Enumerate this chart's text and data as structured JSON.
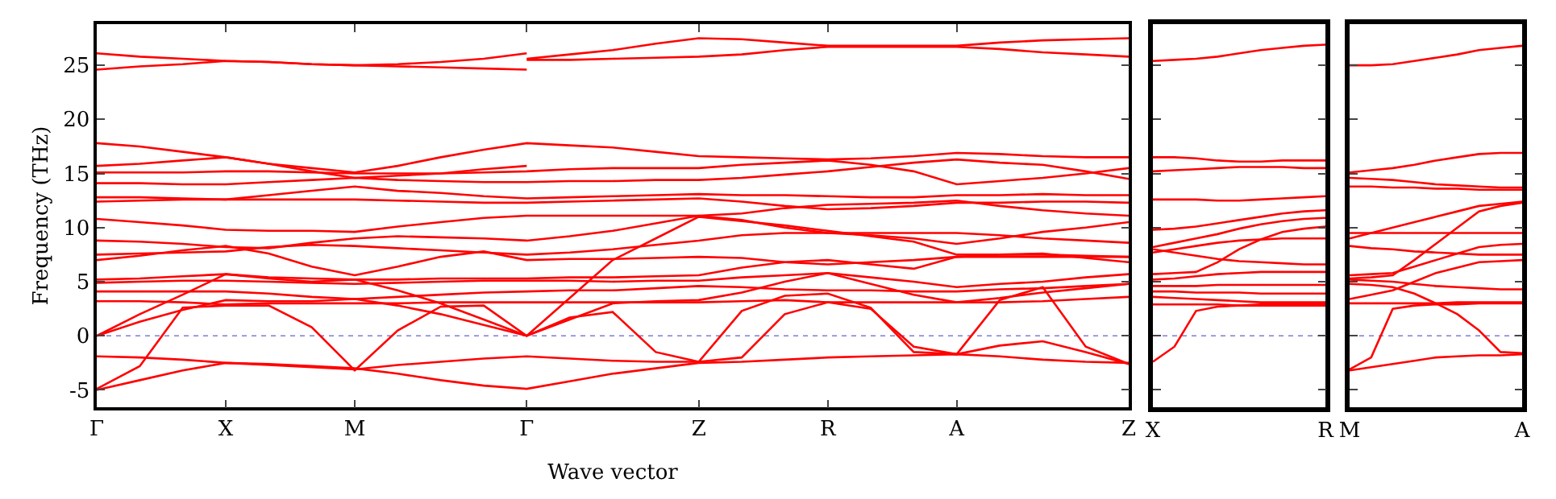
{
  "chart_data": [
    {
      "type": "line",
      "xlabel": "Wave vector",
      "ylabel": "Frequency (THz)",
      "ylim": [
        -6.6,
        28.8
      ],
      "yticks": [
        -5,
        0,
        5,
        10,
        15,
        20,
        25
      ],
      "categories": [
        "Γ",
        null,
        null,
        "X",
        null,
        null,
        "M",
        null,
        null,
        null,
        "Γ",
        null,
        null,
        null,
        "Z",
        null,
        null,
        "R",
        null,
        null,
        "A",
        null,
        null,
        null,
        "Z"
      ],
      "ref_lines": [
        {
          "axis": "y",
          "value": 0,
          "color": "#7b7bd6",
          "line_style": "dotted"
        }
      ],
      "series": [
        {
          "color": "#ff0000",
          "values": [
            26.1,
            25.8,
            25.6,
            25.4,
            25.3,
            25.1,
            25.0,
            25.1,
            25.3,
            25.6,
            26.1,
            null,
            null,
            null,
            null,
            null,
            null,
            null,
            null,
            null,
            null,
            null,
            null,
            null,
            null
          ]
        },
        {
          "color": "#ff0000",
          "values": [
            24.6,
            24.9,
            25.1,
            25.4,
            25.3,
            25.1,
            25.0,
            24.9,
            24.8,
            24.7,
            24.6,
            null,
            null,
            null,
            null,
            null,
            null,
            null,
            null,
            null,
            null,
            null,
            null,
            null,
            null
          ]
        },
        {
          "color": "#ff0000",
          "values": [
            null,
            null,
            null,
            null,
            null,
            null,
            null,
            null,
            null,
            null,
            25.6,
            26.0,
            26.4,
            27.0,
            27.5,
            27.4,
            27.1,
            26.8,
            26.8,
            26.8,
            26.8,
            27.1,
            27.3,
            27.4,
            27.5
          ]
        },
        {
          "color": "#ff0000",
          "values": [
            null,
            null,
            null,
            null,
            null,
            null,
            null,
            null,
            null,
            null,
            25.5,
            25.5,
            25.6,
            25.7,
            25.8,
            26.0,
            26.4,
            26.7,
            26.7,
            26.7,
            26.7,
            26.5,
            26.2,
            26.0,
            25.8
          ]
        },
        {
          "color": "#ff0000",
          "values": [
            17.8,
            17.5,
            17.0,
            16.5,
            15.9,
            15.5,
            15.1,
            15.7,
            16.5,
            17.2,
            17.8,
            17.6,
            17.4,
            17.0,
            16.6,
            16.5,
            16.4,
            16.3,
            16.4,
            16.6,
            16.9,
            16.8,
            16.6,
            16.5,
            16.5
          ]
        },
        {
          "color": "#ff0000",
          "values": [
            15.7,
            15.9,
            16.2,
            16.5,
            15.9,
            15.2,
            14.6,
            14.8,
            15.0,
            15.4,
            15.7,
            null,
            null,
            null,
            null,
            null,
            null,
            null,
            null,
            null,
            null,
            null,
            null,
            null,
            null
          ]
        },
        {
          "color": "#ff0000",
          "values": [
            15.1,
            15.1,
            15.1,
            15.2,
            15.2,
            15.1,
            15.0,
            15.0,
            15.0,
            15.1,
            15.2,
            15.4,
            15.5,
            15.5,
            15.5,
            15.8,
            16.0,
            16.2,
            15.8,
            15.2,
            14.0,
            14.3,
            14.6,
            15.0,
            15.5
          ]
        },
        {
          "color": "#ff0000",
          "values": [
            14.1,
            14.1,
            14.0,
            14.0,
            14.2,
            14.4,
            14.6,
            14.4,
            14.3,
            14.2,
            14.2,
            14.3,
            14.3,
            14.4,
            14.4,
            14.6,
            14.9,
            15.2,
            15.6,
            16.0,
            16.3,
            16.0,
            15.8,
            15.2,
            14.5
          ]
        },
        {
          "color": "#ff0000",
          "values": [
            12.8,
            12.8,
            12.7,
            12.6,
            13.0,
            13.4,
            13.8,
            13.4,
            13.2,
            12.9,
            12.7,
            12.8,
            12.9,
            13.0,
            13.1,
            13.0,
            13.0,
            12.9,
            12.8,
            12.8,
            13.0,
            13.0,
            13.1,
            13.0,
            13.0
          ]
        },
        {
          "color": "#ff0000",
          "values": [
            12.4,
            12.5,
            12.6,
            12.6,
            12.6,
            12.6,
            12.6,
            12.5,
            12.4,
            12.3,
            12.3,
            12.4,
            12.5,
            12.6,
            12.7,
            12.4,
            12.0,
            11.7,
            11.8,
            12.0,
            12.3,
            12.3,
            12.4,
            12.4,
            12.3
          ]
        },
        {
          "color": "#ff0000",
          "values": [
            10.8,
            10.5,
            10.2,
            9.8,
            9.7,
            9.7,
            9.6,
            10.1,
            10.5,
            10.9,
            11.1,
            11.1,
            11.1,
            11.1,
            11.1,
            11.3,
            11.8,
            12.1,
            12.2,
            12.3,
            12.5,
            12.0,
            11.6,
            11.3,
            11.1
          ]
        },
        {
          "color": "#ff0000",
          "values": [
            8.8,
            8.7,
            8.5,
            8.2,
            8.1,
            8.6,
            9.0,
            9.2,
            9.1,
            9.0,
            8.8,
            9.2,
            9.7,
            10.4,
            11.1,
            10.7,
            10.0,
            9.5,
            9.3,
            9.0,
            8.5,
            9.0,
            9.6,
            10.0,
            10.5
          ]
        },
        {
          "color": "#ff0000",
          "values": [
            7.5,
            7.6,
            7.7,
            7.8,
            8.2,
            8.4,
            8.3,
            8.1,
            7.9,
            7.7,
            7.5,
            7.7,
            8.0,
            8.4,
            8.8,
            9.3,
            9.5,
            9.5,
            9.5,
            9.5,
            9.5,
            9.3,
            9.0,
            8.8,
            8.6
          ]
        },
        {
          "color": "#ff0000",
          "values": [
            7.0,
            7.4,
            7.9,
            8.3,
            7.6,
            6.4,
            5.6,
            6.4,
            7.3,
            7.8,
            7.0,
            7.1,
            7.1,
            7.2,
            7.3,
            7.2,
            6.8,
            6.6,
            6.8,
            7.0,
            7.3,
            7.3,
            7.3,
            7.3,
            7.3
          ]
        },
        {
          "color": "#ff0000",
          "values": [
            5.2,
            5.3,
            5.5,
            5.7,
            5.4,
            5.3,
            5.2,
            5.2,
            5.3,
            5.3,
            5.3,
            5.4,
            5.4,
            5.5,
            5.6,
            6.3,
            6.8,
            7.0,
            6.6,
            6.2,
            7.3,
            7.5,
            7.6,
            7.2,
            6.8
          ]
        },
        {
          "color": "#ff0000",
          "values": [
            4.9,
            5.0,
            5.1,
            5.1,
            5.0,
            4.9,
            4.8,
            4.9,
            5.0,
            5.1,
            5.1,
            5.1,
            5.0,
            5.1,
            5.1,
            5.4,
            5.6,
            5.8,
            5.4,
            5.0,
            4.5,
            4.8,
            5.0,
            5.4,
            5.7
          ]
        },
        {
          "color": "#ff0000",
          "values": [
            4.1,
            4.1,
            4.1,
            4.1,
            3.9,
            3.6,
            3.4,
            3.6,
            3.8,
            4.0,
            4.1,
            4.2,
            4.2,
            4.4,
            4.6,
            4.5,
            4.3,
            4.2,
            4.2,
            4.1,
            4.1,
            4.3,
            4.4,
            4.6,
            4.8
          ]
        },
        {
          "color": "#ff0000",
          "values": [
            3.2,
            3.2,
            3.1,
            2.9,
            3.0,
            3.0,
            3.0,
            3.0,
            3.1,
            3.1,
            3.1,
            3.1,
            3.1,
            3.1,
            3.1,
            3.2,
            3.3,
            3.1,
            3.1,
            3.1,
            3.1,
            3.1,
            3.2,
            3.4,
            3.6
          ]
        },
        {
          "color": "#ff0000",
          "values": [
            0,
            2.0,
            3.8,
            5.7,
            5.3,
            5.0,
            5.2,
            4.2,
            3.0,
            1.5,
            0,
            3.5,
            7.0,
            9.0,
            11.0,
            10.6,
            10.2,
            9.7,
            9.2,
            8.7,
            7.5,
            7.5,
            7.5,
            7.4,
            7.3
          ]
        },
        {
          "color": "#ff0000",
          "values": [
            0,
            1.3,
            2.4,
            3.3,
            3.2,
            3.2,
            3.4,
            2.8,
            2.0,
            1.0,
            0,
            1.5,
            3.0,
            3.2,
            3.3,
            4.0,
            5.0,
            5.8,
            4.8,
            3.8,
            3.1,
            3.5,
            4.0,
            4.4,
            4.8
          ]
        },
        {
          "color": "#ff0000",
          "values": [
            -4.9,
            -2.8,
            2.6,
            2.8,
            2.8,
            0.8,
            -3.2,
            0.5,
            2.7,
            2.8,
            0,
            1.7,
            2.2,
            -1.5,
            -2.4,
            2.3,
            3.7,
            3.9,
            2.6,
            -1.5,
            -1.7,
            3.3,
            4.5,
            -1.0,
            -2.6
          ]
        },
        {
          "color": "#ff0000",
          "values": [
            -1.9,
            -2.0,
            -2.2,
            -2.5,
            -2.7,
            -2.9,
            -3.1,
            -2.7,
            -2.4,
            -2.1,
            -1.9,
            -2.1,
            -2.3,
            -2.4,
            -2.4,
            -2.0,
            2.0,
            3.1,
            2.5,
            -1.0,
            -1.7,
            -0.9,
            -0.5,
            -1.5,
            -2.6
          ]
        },
        {
          "color": "#ff0000",
          "values": [
            -5.0,
            -4.1,
            -3.2,
            -2.5,
            -2.6,
            -2.8,
            -3.0,
            -3.5,
            -4.1,
            -4.6,
            -4.9,
            -4.2,
            -3.5,
            -3.0,
            -2.5,
            -2.4,
            -2.2,
            -2.0,
            -1.9,
            -1.8,
            -1.7,
            -1.9,
            -2.2,
            -2.4,
            -2.5
          ]
        }
      ]
    },
    {
      "type": "line",
      "tick_labels": "x",
      "ylim": [
        -6.6,
        28.8
      ],
      "yticks": [
        -5,
        0,
        5,
        10,
        15,
        20,
        25
      ],
      "categories": [
        "X",
        null,
        null,
        null,
        null,
        null,
        null,
        null,
        "R"
      ],
      "ref_lines": [
        {
          "axis": "y",
          "value": 0,
          "color": "#7b7bd6",
          "line_style": "dotted"
        }
      ],
      "series": [
        {
          "color": "#ff0000",
          "values": [
            25.4,
            25.5,
            25.6,
            25.8,
            26.1,
            26.4,
            26.6,
            26.8,
            26.9
          ]
        },
        {
          "color": "#ff0000",
          "values": [
            16.5,
            16.5,
            16.4,
            16.2,
            16.1,
            16.1,
            16.2,
            16.2,
            16.2
          ]
        },
        {
          "color": "#ff0000",
          "values": [
            15.2,
            15.3,
            15.4,
            15.5,
            15.6,
            15.6,
            15.6,
            15.5,
            15.5
          ]
        },
        {
          "color": "#ff0000",
          "values": [
            12.6,
            12.6,
            12.6,
            12.5,
            12.5,
            12.6,
            12.7,
            12.8,
            12.9
          ]
        },
        {
          "color": "#ff0000",
          "values": [
            9.8,
            9.9,
            10.1,
            10.4,
            10.7,
            11.0,
            11.3,
            11.5,
            11.6
          ]
        },
        {
          "color": "#ff0000",
          "values": [
            8.2,
            8.6,
            9.0,
            9.4,
            9.9,
            10.3,
            10.6,
            10.8,
            10.9
          ]
        },
        {
          "color": "#ff0000",
          "values": [
            7.7,
            8.0,
            8.3,
            8.6,
            8.8,
            8.9,
            9.0,
            9.0,
            9.0
          ]
        },
        {
          "color": "#ff0000",
          "values": [
            5.7,
            5.8,
            5.9,
            6.8,
            8.0,
            8.9,
            9.6,
            9.9,
            10.1
          ]
        },
        {
          "color": "#ff0000",
          "values": [
            8.0,
            7.7,
            7.4,
            7.1,
            6.9,
            6.8,
            6.7,
            6.6,
            6.6
          ]
        },
        {
          "color": "#ff0000",
          "values": [
            5.2,
            5.3,
            5.5,
            5.7,
            5.8,
            5.9,
            5.9,
            5.9,
            5.9
          ]
        },
        {
          "color": "#ff0000",
          "values": [
            4.6,
            4.6,
            4.6,
            4.7,
            4.7,
            4.7,
            4.7,
            4.7,
            4.7
          ]
        },
        {
          "color": "#ff0000",
          "values": [
            4.1,
            4.1,
            4.0,
            4.0,
            4.0,
            3.9,
            3.9,
            3.9,
            3.9
          ]
        },
        {
          "color": "#ff0000",
          "values": [
            3.6,
            3.5,
            3.4,
            3.3,
            3.2,
            3.1,
            3.1,
            3.1,
            3.1
          ]
        },
        {
          "color": "#ff0000",
          "values": [
            2.9,
            2.9,
            2.9,
            2.9,
            2.8,
            2.8,
            2.8,
            2.8,
            2.8
          ]
        },
        {
          "color": "#ff0000",
          "values": [
            -2.4,
            -1.0,
            2.3,
            2.7,
            2.8,
            2.9,
            2.9,
            2.9,
            2.9
          ]
        }
      ]
    },
    {
      "type": "line",
      "tick_labels": "x",
      "ylim": [
        -6.6,
        28.8
      ],
      "yticks": [
        -5,
        0,
        5,
        10,
        15,
        20,
        25
      ],
      "categories": [
        "M",
        null,
        null,
        null,
        null,
        null,
        null,
        null,
        "A"
      ],
      "ref_lines": [
        {
          "axis": "y",
          "value": 0,
          "color": "#7b7bd6",
          "line_style": "dotted"
        }
      ],
      "series": [
        {
          "color": "#ff0000",
          "values": [
            25.0,
            25.0,
            25.1,
            25.4,
            25.7,
            26.0,
            26.4,
            26.6,
            26.8
          ]
        },
        {
          "color": "#ff0000",
          "values": [
            15.1,
            15.3,
            15.5,
            15.8,
            16.2,
            16.5,
            16.8,
            16.9,
            16.9
          ]
        },
        {
          "color": "#ff0000",
          "values": [
            14.6,
            14.5,
            14.4,
            14.2,
            14.0,
            13.9,
            13.8,
            13.7,
            13.7
          ]
        },
        {
          "color": "#ff0000",
          "values": [
            13.8,
            13.8,
            13.7,
            13.7,
            13.6,
            13.6,
            13.5,
            13.5,
            13.5
          ]
        },
        {
          "color": "#ff0000",
          "values": [
            9.0,
            9.5,
            10.0,
            10.5,
            11.0,
            11.5,
            12.0,
            12.2,
            12.4
          ]
        },
        {
          "color": "#ff0000",
          "values": [
            9.5,
            9.5,
            9.5,
            9.5,
            9.5,
            9.5,
            9.5,
            9.5,
            9.5
          ]
        },
        {
          "color": "#ff0000",
          "values": [
            8.3,
            8.1,
            8.0,
            7.8,
            7.7,
            7.6,
            7.5,
            7.5,
            7.5
          ]
        },
        {
          "color": "#ff0000",
          "values": [
            5.3,
            5.4,
            5.6,
            7.0,
            8.5,
            10.0,
            11.5,
            12.0,
            12.3
          ]
        },
        {
          "color": "#ff0000",
          "values": [
            5.6,
            5.7,
            5.8,
            6.4,
            7.0,
            7.6,
            8.2,
            8.4,
            8.5
          ]
        },
        {
          "color": "#ff0000",
          "values": [
            3.4,
            3.8,
            4.2,
            5.0,
            5.8,
            6.3,
            6.8,
            6.9,
            7.0
          ]
        },
        {
          "color": "#ff0000",
          "values": [
            5.2,
            5.1,
            5.0,
            4.8,
            4.6,
            4.5,
            4.4,
            4.3,
            4.3
          ]
        },
        {
          "color": "#ff0000",
          "values": [
            3.0,
            3.0,
            3.0,
            3.0,
            3.0,
            3.1,
            3.1,
            3.1,
            3.1
          ]
        },
        {
          "color": "#ff0000",
          "values": [
            4.8,
            4.7,
            4.5,
            3.9,
            3.0,
            2.0,
            0.5,
            -1.5,
            -1.6
          ]
        },
        {
          "color": "#ff0000",
          "values": [
            -3.2,
            -2.9,
            -2.6,
            -2.3,
            -2.0,
            -1.9,
            -1.8,
            -1.8,
            -1.7
          ]
        },
        {
          "color": "#ff0000",
          "values": [
            -3.1,
            -2.0,
            2.5,
            2.8,
            2.9,
            2.9,
            3.0,
            3.0,
            3.0
          ]
        }
      ]
    }
  ]
}
